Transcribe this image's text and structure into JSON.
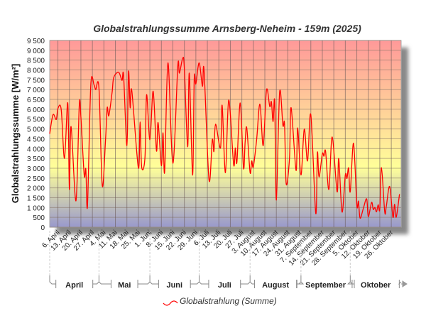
{
  "chart_data": {
    "type": "line",
    "title": "Globalstrahlungssumme Arnsberg-Neheim - 159m (2025)",
    "ylabel": "Globalstrahlungssumme [W/m²]",
    "xlabel": "",
    "ylim": [
      0,
      9500
    ],
    "xlim": [
      "2025-04-01",
      "2025-10-31"
    ],
    "grid": true,
    "legend_position": "bottom",
    "y_ticks": [
      "0",
      "500",
      "1 000",
      "1 500",
      "2 000",
      "2 500",
      "3 000",
      "3 500",
      "4 000",
      "4 500",
      "5 000",
      "5 500",
      "6 000",
      "6 500",
      "7 000",
      "7 500",
      "8 000",
      "8 500",
      "9 000",
      "9 500"
    ],
    "x_tick_labels": [
      "6. April",
      "13. April",
      "20. April",
      "27. April",
      "4. Mai",
      "11. Mai",
      "18. Mai",
      "25. Mai",
      "1. Juni",
      "8. Juni",
      "15. Juni",
      "22. Juni",
      "29. Juni",
      "6. Juli",
      "13. Juli",
      "20. Juli",
      "27. Juli",
      "3. August",
      "10. August",
      "17. August",
      "24. August",
      "31. August",
      "7. September",
      "14. September",
      "21. September",
      "28. September",
      "5. Oktober",
      "12. Oktober",
      "19. Oktober",
      "26. Oktober"
    ],
    "months": [
      "April",
      "Mai",
      "Juni",
      "Juli",
      "August",
      "September",
      "Oktober"
    ],
    "series": [
      {
        "name": "Globalstrahlung (Summe)",
        "color": "#ff0000",
        "points": [
          [
            "2025-04-01",
            4750
          ],
          [
            "2025-04-03",
            5720
          ],
          [
            "2025-04-05",
            5480
          ],
          [
            "2025-04-06",
            6040
          ],
          [
            "2025-04-08",
            5990
          ],
          [
            "2025-04-10",
            3500
          ],
          [
            "2025-04-12",
            6320
          ],
          [
            "2025-04-13",
            1920
          ],
          [
            "2025-04-14",
            5120
          ],
          [
            "2025-04-17",
            1340
          ],
          [
            "2025-04-19",
            6200
          ],
          [
            "2025-04-20",
            5600
          ],
          [
            "2025-04-22",
            2650
          ],
          [
            "2025-04-23",
            2950
          ],
          [
            "2025-04-24",
            1080
          ],
          [
            "2025-04-26",
            7200
          ],
          [
            "2025-04-28",
            7240
          ],
          [
            "2025-04-29",
            7000
          ],
          [
            "2025-05-01",
            7070
          ],
          [
            "2025-05-03",
            2110
          ],
          [
            "2025-05-05",
            4450
          ],
          [
            "2025-05-06",
            6080
          ],
          [
            "2025-05-07",
            5670
          ],
          [
            "2025-05-09",
            6860
          ],
          [
            "2025-05-10",
            7620
          ],
          [
            "2025-05-13",
            7880
          ],
          [
            "2025-05-15",
            7470
          ],
          [
            "2025-05-16",
            7700
          ],
          [
            "2025-05-18",
            4150
          ],
          [
            "2025-05-19",
            7920
          ],
          [
            "2025-05-20",
            6080
          ],
          [
            "2025-05-21",
            6940
          ],
          [
            "2025-05-25",
            3010
          ],
          [
            "2025-05-26",
            5350
          ],
          [
            "2025-05-27",
            3060
          ],
          [
            "2025-05-29",
            3540
          ],
          [
            "2025-05-30",
            6740
          ],
          [
            "2025-06-01",
            4450
          ],
          [
            "2025-06-03",
            6920
          ],
          [
            "2025-06-05",
            3890
          ],
          [
            "2025-06-06",
            5320
          ],
          [
            "2025-06-08",
            3130
          ],
          [
            "2025-06-09",
            4800
          ],
          [
            "2025-06-10",
            2830
          ],
          [
            "2025-06-12",
            8360
          ],
          [
            "2025-06-15",
            3250
          ],
          [
            "2025-06-18",
            8200
          ],
          [
            "2025-06-19",
            7840
          ],
          [
            "2025-06-21",
            8600
          ],
          [
            "2025-06-22",
            8070
          ],
          [
            "2025-06-24",
            4090
          ],
          [
            "2025-06-25",
            7830
          ],
          [
            "2025-06-27",
            2650
          ],
          [
            "2025-06-28",
            7530
          ],
          [
            "2025-06-29",
            7290
          ],
          [
            "2025-07-01",
            8360
          ],
          [
            "2025-07-03",
            7170
          ],
          [
            "2025-07-04",
            7970
          ],
          [
            "2025-07-07",
            2410
          ],
          [
            "2025-07-09",
            4450
          ],
          [
            "2025-07-10",
            3850
          ],
          [
            "2025-07-11",
            5240
          ],
          [
            "2025-07-14",
            4030
          ],
          [
            "2025-07-15",
            6200
          ],
          [
            "2025-07-17",
            2770
          ],
          [
            "2025-07-19",
            6470
          ],
          [
            "2025-07-22",
            3190
          ],
          [
            "2025-07-23",
            4030
          ],
          [
            "2025-07-24",
            3310
          ],
          [
            "2025-07-26",
            6320
          ],
          [
            "2025-07-28",
            3010
          ],
          [
            "2025-07-29",
            4330
          ],
          [
            "2025-07-30",
            5050
          ],
          [
            "2025-08-01",
            2790
          ],
          [
            "2025-08-02",
            3370
          ],
          [
            "2025-08-03",
            3070
          ],
          [
            "2025-08-05",
            4450
          ],
          [
            "2025-08-07",
            6260
          ],
          [
            "2025-08-09",
            4150
          ],
          [
            "2025-08-11",
            6980
          ],
          [
            "2025-08-13",
            6140
          ],
          [
            "2025-08-14",
            6380
          ],
          [
            "2025-08-15",
            5360
          ],
          [
            "2025-08-16",
            6380
          ],
          [
            "2025-08-17",
            1380
          ],
          [
            "2025-08-19",
            6860
          ],
          [
            "2025-08-21",
            5180
          ],
          [
            "2025-08-22",
            5240
          ],
          [
            "2025-08-23",
            2200
          ],
          [
            "2025-08-25",
            3490
          ],
          [
            "2025-08-26",
            6080
          ],
          [
            "2025-08-29",
            2890
          ],
          [
            "2025-08-30",
            5050
          ],
          [
            "2025-09-01",
            2650
          ],
          [
            "2025-09-03",
            4990
          ],
          [
            "2025-09-05",
            3370
          ],
          [
            "2025-09-07",
            5720
          ],
          [
            "2025-09-10",
            700
          ],
          [
            "2025-09-11",
            3790
          ],
          [
            "2025-09-12",
            2550
          ],
          [
            "2025-09-14",
            3730
          ],
          [
            "2025-09-15",
            3610
          ],
          [
            "2025-09-16",
            3850
          ],
          [
            "2025-09-18",
            1920
          ],
          [
            "2025-09-20",
            4590
          ],
          [
            "2025-09-23",
            1800
          ],
          [
            "2025-09-24",
            3490
          ],
          [
            "2025-09-26",
            770
          ],
          [
            "2025-09-28",
            2650
          ],
          [
            "2025-09-29",
            2480
          ],
          [
            "2025-09-30",
            3010
          ],
          [
            "2025-10-01",
            1800
          ],
          [
            "2025-10-03",
            4270
          ],
          [
            "2025-10-05",
            1140
          ],
          [
            "2025-10-06",
            1320
          ],
          [
            "2025-10-07",
            460
          ],
          [
            "2025-10-09",
            960
          ],
          [
            "2025-10-11",
            1440
          ],
          [
            "2025-10-12",
            540
          ],
          [
            "2025-10-14",
            1260
          ],
          [
            "2025-10-15",
            900
          ],
          [
            "2025-10-16",
            1000
          ],
          [
            "2025-10-17",
            780
          ],
          [
            "2025-10-18",
            1140
          ],
          [
            "2025-10-19",
            920
          ],
          [
            "2025-10-20",
            3030
          ],
          [
            "2025-10-22",
            780
          ],
          [
            "2025-10-23",
            1080
          ],
          [
            "2025-10-25",
            2070
          ],
          [
            "2025-10-27",
            510
          ],
          [
            "2025-10-28",
            1170
          ],
          [
            "2025-10-29",
            510
          ],
          [
            "2025-10-31",
            1680
          ]
        ]
      }
    ],
    "background_gradient": [
      "#ff9999",
      "#ffff99",
      "#9999cc"
    ]
  }
}
